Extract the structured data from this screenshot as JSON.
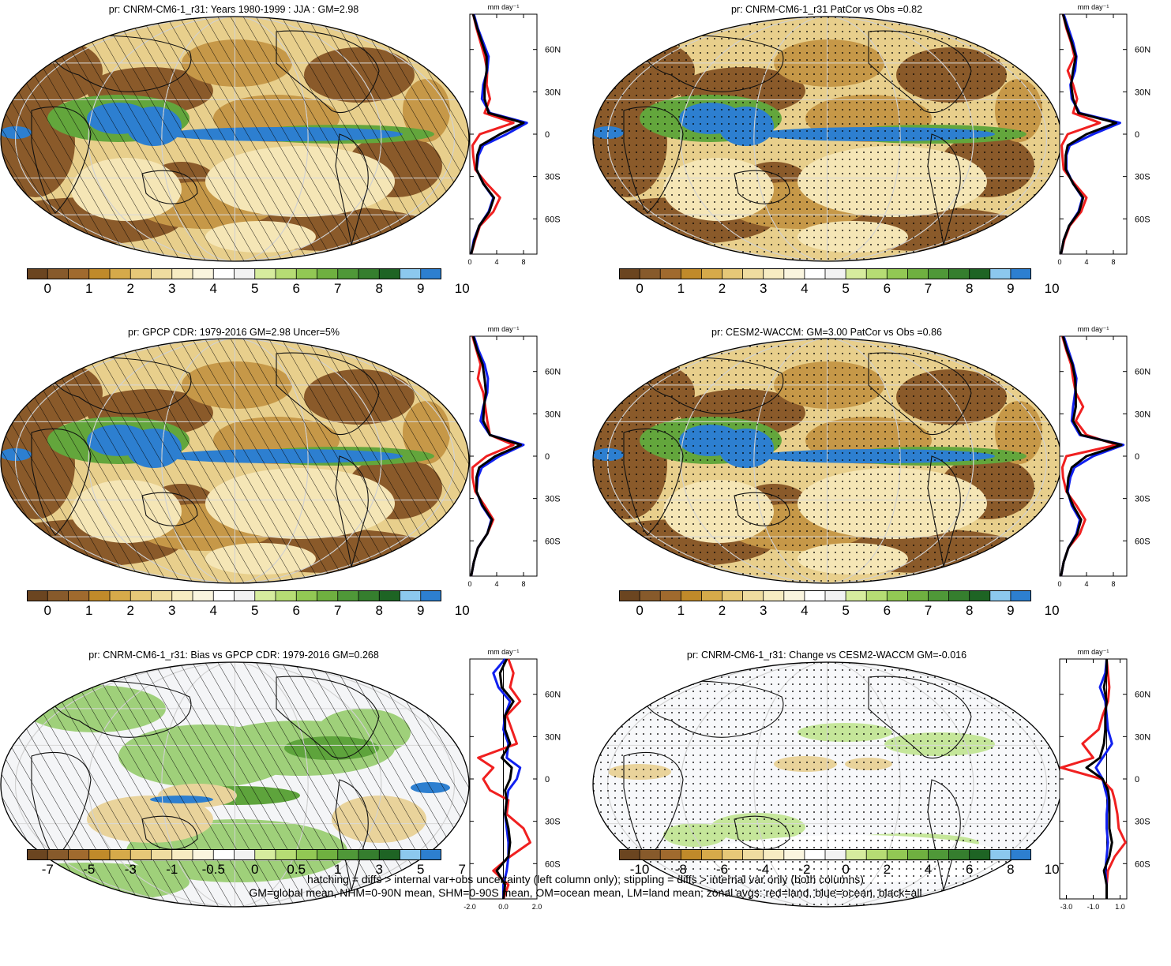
{
  "panels": [
    {
      "id": "p1",
      "title": "pr: CNRM-CM6-1_r31: Years 1980-1999 : JJA : GM=2.98",
      "palette": "precip",
      "overlay": "hatch",
      "colorbar_labels": [
        "0",
        "1",
        "2",
        "3",
        "4",
        "5",
        "6",
        "7",
        "8",
        "9",
        "10"
      ],
      "zonal": {
        "unit": "mm day⁻¹",
        "xlim": [
          0,
          10
        ],
        "xticks": [
          "0",
          "4",
          "8"
        ],
        "yticks": [
          "60N",
          "30N",
          "0",
          "30S",
          "60S"
        ],
        "zero_line": false
      }
    },
    {
      "id": "p2",
      "title": "pr: CNRM-CM6-1_r31 PatCor vs Obs =0.82",
      "palette": "precip",
      "overlay": "stipple",
      "colorbar_labels": [
        "0",
        "1",
        "2",
        "3",
        "4",
        "5",
        "6",
        "7",
        "8",
        "9",
        "10"
      ],
      "zonal": {
        "unit": "mm day⁻¹",
        "xlim": [
          0,
          10
        ],
        "xticks": [
          "0",
          "4",
          "8"
        ],
        "yticks": [
          "60N",
          "30N",
          "0",
          "30S",
          "60S"
        ],
        "zero_line": false
      }
    },
    {
      "id": "p3",
      "title": "pr: GPCP CDR: 1979-2016 GM=2.98 Uncer=5%",
      "palette": "precip",
      "overlay": "hatch",
      "colorbar_labels": [
        "0",
        "1",
        "2",
        "3",
        "4",
        "5",
        "6",
        "7",
        "8",
        "9",
        "10"
      ],
      "zonal": {
        "unit": "mm day⁻¹",
        "xlim": [
          0,
          10
        ],
        "xticks": [
          "0",
          "4",
          "8"
        ],
        "yticks": [
          "60N",
          "30N",
          "0",
          "30S",
          "60S"
        ],
        "zero_line": false
      }
    },
    {
      "id": "p4",
      "title": "pr: CESM2-WACCM: GM=3.00 PatCor vs Obs =0.86",
      "palette": "precip",
      "overlay": "stipple",
      "colorbar_labels": [
        "0",
        "1",
        "2",
        "3",
        "4",
        "5",
        "6",
        "7",
        "8",
        "9",
        "10"
      ],
      "zonal": {
        "unit": "mm day⁻¹",
        "xlim": [
          0,
          10
        ],
        "xticks": [
          "0",
          "4",
          "8"
        ],
        "yticks": [
          "60N",
          "30N",
          "0",
          "30S",
          "60S"
        ],
        "zero_line": false
      }
    },
    {
      "id": "p5",
      "title": "pr: CNRM-CM6-1_r31: Bias vs GPCP CDR: 1979-2016 GM=0.268",
      "palette": "bias",
      "overlay": "hatch",
      "colorbar_labels": [
        "-7",
        "-5",
        "-3",
        "-1",
        "-0.5",
        "0",
        "0.5",
        "1",
        "3",
        "5",
        "7"
      ],
      "zonal": {
        "unit": "mm day⁻¹",
        "xlim": [
          -2,
          2
        ],
        "xticks": [
          "-2.0",
          "0.0",
          "2.0"
        ],
        "yticks": [
          "60N",
          "30N",
          "0",
          "30S",
          "60S"
        ],
        "zero_line": true
      }
    },
    {
      "id": "p6",
      "title": "pr: CNRM-CM6-1_r31: Change vs CESM2-WACCM GM=-0.016",
      "palette": "change",
      "overlay": "stipple",
      "colorbar_labels": [
        "-10",
        "-8",
        "-6",
        "-4",
        "-2",
        "0",
        "2",
        "4",
        "6",
        "8",
        "10"
      ],
      "zonal": {
        "unit": "mm day⁻¹",
        "xlim": [
          -3.5,
          1.5
        ],
        "xticks": [
          "-3.0",
          "-1.0",
          "1.0"
        ],
        "yticks": [
          "60N",
          "30N",
          "0",
          "30S",
          "60S"
        ],
        "zero_line": true
      }
    }
  ],
  "palettes": {
    "precip": [
      "#6b4520",
      "#875a2b",
      "#a06a2e",
      "#c08a2a",
      "#d6aa4a",
      "#e6c878",
      "#efdca0",
      "#f7ecc2",
      "#faf5df",
      "#ffffff",
      "#f2f2f2",
      "#d6ec9e",
      "#b6dc74",
      "#92c854",
      "#6fb040",
      "#4f9838",
      "#357e2e",
      "#1e6424",
      "#8cc8ee",
      "#2d7fd0"
    ],
    "bias": [
      "#6b4520",
      "#875a2b",
      "#a06a2e",
      "#c08a2a",
      "#d6aa4a",
      "#e6c878",
      "#efdca0",
      "#f7ecc2",
      "#faf5df",
      "#ffffff",
      "#f2f2f2",
      "#d6ec9e",
      "#b6dc74",
      "#92c854",
      "#6fb040",
      "#4f9838",
      "#357e2e",
      "#1e6424",
      "#8cc8ee",
      "#2d7fd0"
    ],
    "change": [
      "#6b4520",
      "#875a2b",
      "#a06a2e",
      "#c08a2a",
      "#d6aa4a",
      "#e6c878",
      "#efdca0",
      "#f7ecc2",
      "#faf5df",
      "#ffffff",
      "#f2f2f2",
      "#d6ec9e",
      "#b6dc74",
      "#92c854",
      "#6fb040",
      "#4f9838",
      "#357e2e",
      "#1e6424",
      "#8cc8ee",
      "#2d7fd0"
    ]
  },
  "chart_data": [
    {
      "type": "line",
      "title": "pr: CNRM-CM6-1_r31: Years 1980-1999 : JJA : GM=2.98",
      "xlabel": "mm day⁻¹",
      "xlim": [
        0,
        10
      ],
      "ylim": [
        -85,
        85
      ],
      "y": [
        85,
        75,
        65,
        55,
        45,
        35,
        25,
        15,
        8,
        0,
        -8,
        -15,
        -25,
        -35,
        -45,
        -55,
        -65,
        -75,
        -85
      ],
      "series": [
        {
          "name": "land",
          "color": "red",
          "values": [
            0.5,
            1.0,
            1.6,
            2.2,
            2.6,
            2.5,
            3.0,
            2.2,
            6.5,
            1.5,
            0.4,
            0.5,
            0.8,
            2.5,
            4.5,
            3.5,
            1.5,
            0.8,
            0.2
          ]
        },
        {
          "name": "ocean",
          "color": "blue",
          "values": [
            0.6,
            1.2,
            2.0,
            2.8,
            2.6,
            2.0,
            1.8,
            3.0,
            8.5,
            5.5,
            2.0,
            1.3,
            1.0,
            2.0,
            3.5,
            2.8,
            1.4,
            0.6,
            0.2
          ]
        },
        {
          "name": "all",
          "color": "black",
          "values": [
            0.5,
            1.1,
            1.8,
            2.5,
            2.5,
            2.2,
            2.2,
            2.8,
            8.0,
            4.5,
            1.6,
            1.1,
            1.0,
            2.0,
            3.6,
            2.9,
            1.4,
            0.7,
            0.2
          ]
        }
      ]
    },
    {
      "type": "line",
      "title": "pr: CNRM-CM6-1_r31 PatCor vs Obs =0.82",
      "xlabel": "mm day⁻¹",
      "xlim": [
        0,
        10
      ],
      "ylim": [
        -85,
        85
      ],
      "y": [
        85,
        75,
        65,
        55,
        45,
        35,
        25,
        15,
        8,
        0,
        -8,
        -15,
        -25,
        -35,
        -45,
        -55,
        -65,
        -75,
        -85
      ],
      "series": [
        {
          "name": "land",
          "color": "red",
          "values": [
            0.5,
            1.0,
            1.7,
            2.2,
            1.2,
            2.0,
            2.6,
            2.0,
            6.0,
            1.2,
            0.3,
            0.4,
            0.6,
            2.2,
            4.0,
            3.2,
            1.5,
            0.7,
            0.2
          ]
        },
        {
          "name": "ocean",
          "color": "blue",
          "values": [
            0.6,
            1.3,
            2.0,
            2.5,
            2.3,
            1.6,
            1.8,
            3.0,
            9.0,
            5.0,
            1.5,
            1.0,
            1.0,
            2.0,
            3.4,
            2.8,
            1.4,
            0.6,
            0.2
          ]
        },
        {
          "name": "all",
          "color": "black",
          "values": [
            0.5,
            1.1,
            1.8,
            2.4,
            2.0,
            1.7,
            2.0,
            2.8,
            8.4,
            4.0,
            1.2,
            0.9,
            0.9,
            2.0,
            3.5,
            2.9,
            1.4,
            0.6,
            0.2
          ]
        }
      ]
    },
    {
      "type": "line",
      "title": "pr: GPCP CDR: 1979-2016 GM=2.98 Uncer=5%",
      "xlabel": "mm day⁻¹",
      "xlim": [
        0,
        10
      ],
      "ylim": [
        -85,
        85
      ],
      "y": [
        85,
        75,
        65,
        55,
        45,
        35,
        25,
        15,
        8,
        0,
        -8,
        -15,
        -25,
        -35,
        -45,
        -55,
        -65,
        -75,
        -85
      ],
      "series": [
        {
          "name": "land",
          "color": "red",
          "values": [
            0.4,
            1.0,
            1.6,
            1.2,
            2.0,
            2.3,
            2.6,
            3.0,
            6.5,
            2.5,
            0.4,
            0.4,
            0.8,
            2.2,
            3.5,
            2.6,
            1.2,
            0.6,
            0.2
          ]
        },
        {
          "name": "ocean",
          "color": "blue",
          "values": [
            0.6,
            1.3,
            2.2,
            2.7,
            2.6,
            2.0,
            1.6,
            3.0,
            8.0,
            4.4,
            1.8,
            1.2,
            1.0,
            1.8,
            3.2,
            2.6,
            1.2,
            0.6,
            0.2
          ]
        },
        {
          "name": "all",
          "color": "black",
          "values": [
            0.5,
            1.1,
            1.9,
            2.2,
            2.4,
            2.1,
            2.0,
            3.0,
            7.6,
            3.8,
            1.4,
            1.0,
            1.0,
            1.9,
            3.3,
            2.6,
            1.2,
            0.6,
            0.2
          ]
        }
      ]
    },
    {
      "type": "line",
      "title": "pr: CESM2-WACCM: GM=3.00 PatCor vs Obs =0.86",
      "xlabel": "mm day⁻¹",
      "xlim": [
        0,
        10
      ],
      "ylim": [
        -85,
        85
      ],
      "y": [
        85,
        75,
        65,
        55,
        45,
        35,
        25,
        15,
        8,
        0,
        -8,
        -15,
        -25,
        -35,
        -45,
        -55,
        -65,
        -75,
        -85
      ],
      "series": [
        {
          "name": "land",
          "color": "red",
          "values": [
            0.4,
            1.0,
            1.7,
            2.0,
            2.4,
            3.5,
            2.4,
            4.0,
            8.5,
            1.0,
            0.4,
            0.5,
            1.0,
            2.5,
            3.8,
            3.0,
            1.3,
            0.6,
            0.2
          ]
        },
        {
          "name": "ocean",
          "color": "blue",
          "values": [
            0.6,
            1.3,
            2.0,
            2.5,
            2.3,
            2.0,
            1.8,
            3.0,
            9.5,
            5.0,
            2.2,
            1.6,
            1.2,
            1.8,
            3.0,
            2.5,
            1.3,
            0.6,
            0.2
          ]
        },
        {
          "name": "all",
          "color": "black",
          "values": [
            0.5,
            1.1,
            1.9,
            2.3,
            2.4,
            2.4,
            2.0,
            3.2,
            9.2,
            4.0,
            1.8,
            1.3,
            1.1,
            2.0,
            3.2,
            2.6,
            1.3,
            0.6,
            0.2
          ]
        }
      ]
    },
    {
      "type": "line",
      "title": "pr: CNRM-CM6-1_r31: Bias vs GPCP CDR: 1979-2016 GM=0.268",
      "xlabel": "mm day⁻¹",
      "xlim": [
        -2,
        2
      ],
      "ylim": [
        -85,
        85
      ],
      "y": [
        85,
        75,
        65,
        55,
        45,
        35,
        25,
        15,
        8,
        0,
        -8,
        -15,
        -25,
        -35,
        -45,
        -55,
        -65,
        -75,
        -85
      ],
      "series": [
        {
          "name": "land",
          "color": "red",
          "values": [
            0.3,
            0.6,
            0.4,
            1.0,
            0.2,
            0.5,
            0.8,
            -1.5,
            -0.6,
            -1.2,
            -0.8,
            0.3,
            0.2,
            1.2,
            1.6,
            0.4,
            -0.6,
            0.3,
            0.0
          ]
        },
        {
          "name": "ocean",
          "color": "blue",
          "values": [
            0.1,
            -0.6,
            -0.3,
            0.4,
            0.1,
            0.0,
            0.3,
            0.2,
            1.0,
            0.8,
            0.3,
            0.2,
            0.1,
            0.2,
            0.3,
            0.3,
            0.2,
            0.0,
            0.0
          ]
        },
        {
          "name": "all",
          "color": "black",
          "values": [
            0.2,
            -0.2,
            -0.1,
            0.6,
            0.1,
            0.1,
            0.4,
            -0.1,
            0.5,
            0.4,
            0.1,
            0.2,
            0.1,
            0.3,
            0.4,
            0.3,
            -0.4,
            0.1,
            0.0
          ]
        }
      ]
    },
    {
      "type": "line",
      "title": "pr: CNRM-CM6-1_r31: Change vs CESM2-WACCM GM=-0.016",
      "xlabel": "mm day⁻¹",
      "xlim": [
        -3.5,
        1.5
      ],
      "ylim": [
        -85,
        85
      ],
      "y": [
        85,
        75,
        65,
        55,
        45,
        35,
        25,
        15,
        8,
        0,
        -8,
        -15,
        -25,
        -35,
        -45,
        -55,
        -65,
        -75,
        -85
      ],
      "series": [
        {
          "name": "land",
          "color": "red",
          "values": [
            0.0,
            0.1,
            0.2,
            0.1,
            -0.3,
            -0.6,
            -1.8,
            -1.0,
            -3.4,
            -0.4,
            0.4,
            0.6,
            0.8,
            0.9,
            1.4,
            0.6,
            0.1,
            0.0,
            0.0
          ]
        },
        {
          "name": "ocean",
          "color": "blue",
          "values": [
            0.0,
            -0.1,
            -0.5,
            -0.1,
            0.0,
            0.1,
            0.4,
            -0.3,
            -0.8,
            -0.3,
            -0.1,
            0.1,
            0.0,
            0.0,
            0.1,
            0.0,
            -0.1,
            0.0,
            0.0
          ]
        },
        {
          "name": "all",
          "color": "black",
          "values": [
            0.0,
            0.0,
            -0.2,
            0.0,
            -0.1,
            -0.1,
            -0.2,
            -0.5,
            -1.5,
            -0.3,
            0.1,
            0.2,
            0.2,
            0.2,
            0.4,
            0.2,
            -0.2,
            0.0,
            0.0
          ]
        }
      ]
    }
  ],
  "footer": {
    "line1": "hatching = diffs > internal var+obs uncertainty (left column only); stippling = diffs > internal var only (both columns)",
    "line2": "GM=global mean, NHM=0-90N mean, SHM=0-90S mean, OM=ocean mean, LM=land mean; zonal avgs: red=land, blue=ocean, black=all"
  }
}
